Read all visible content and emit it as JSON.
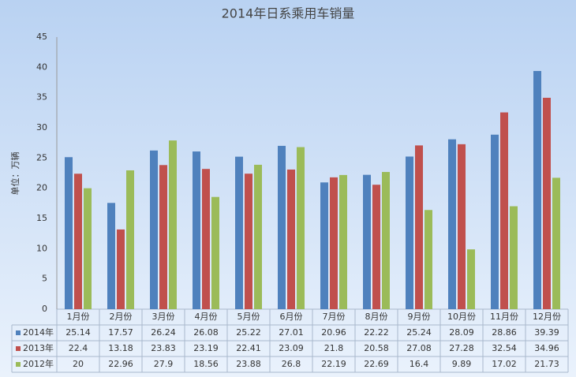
{
  "chart_data": {
    "type": "bar",
    "title": "2014年日系乘用车销量",
    "y_label": "单位：万辆",
    "categories": [
      "1月份",
      "2月份",
      "3月份",
      "4月份",
      "5月份",
      "6月份",
      "7月份",
      "8月份",
      "9月份",
      "10月份",
      "11月份",
      "12月份"
    ],
    "series": [
      {
        "name": "2014年",
        "color": "#4f81bd",
        "values": [
          25.14,
          17.57,
          26.24,
          26.08,
          25.22,
          27.01,
          20.96,
          22.22,
          25.24,
          28.09,
          28.86,
          39.39
        ]
      },
      {
        "name": "2013年",
        "color": "#c0504d",
        "values": [
          22.4,
          13.18,
          23.83,
          23.19,
          22.41,
          23.09,
          21.8,
          20.58,
          27.08,
          27.28,
          32.54,
          34.96
        ]
      },
      {
        "name": "2012年",
        "color": "#9bbb59",
        "values": [
          20,
          22.96,
          27.9,
          18.56,
          23.88,
          26.8,
          22.19,
          22.69,
          16.4,
          9.89,
          17.02,
          21.73
        ]
      }
    ],
    "ylim": [
      0,
      45
    ],
    "yticks": [
      0,
      5,
      10,
      15,
      20,
      25,
      30,
      35,
      40,
      45
    ],
    "grid": false
  }
}
